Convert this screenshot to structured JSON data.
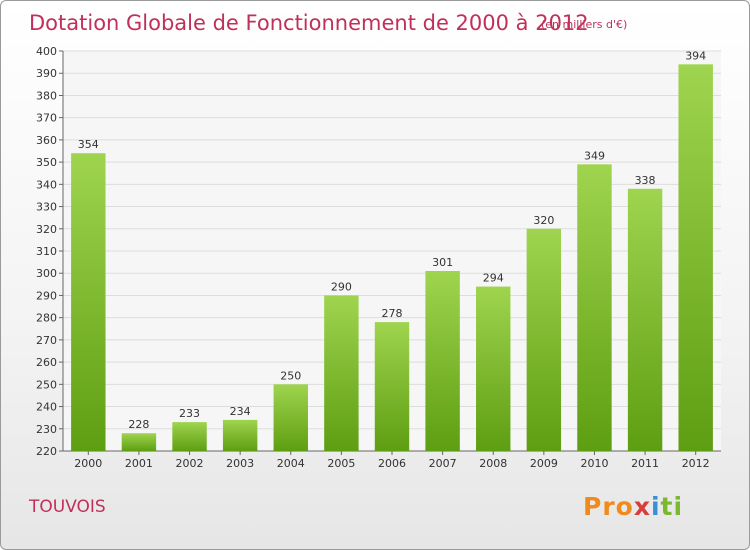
{
  "header": {
    "title": "Dotation Globale de Fonctionnement de 2000 à 2012",
    "subtitle": "(en milliers d'€)"
  },
  "footer": {
    "commune": "TOUVOIS",
    "logo_parts": [
      "Pro",
      "x",
      "i",
      "ti"
    ]
  },
  "colors": {
    "bar_top": "#9fd44f",
    "bar_bottom": "#5e9e12",
    "title": "#c0305a",
    "grid": "#dddddd"
  },
  "chart_data": {
    "type": "bar",
    "title": "Dotation Globale de Fonctionnement de 2000 à 2012",
    "subtitle": "(en milliers d'€)",
    "xlabel": "",
    "ylabel": "",
    "categories": [
      "2000",
      "2001",
      "2002",
      "2003",
      "2004",
      "2005",
      "2006",
      "2007",
      "2008",
      "2009",
      "2010",
      "2011",
      "2012"
    ],
    "values": [
      354,
      228,
      233,
      234,
      250,
      290,
      278,
      301,
      294,
      320,
      349,
      338,
      394
    ],
    "ylim": [
      220,
      400
    ],
    "ytick_step": 10,
    "grid": true,
    "legend": "none"
  }
}
